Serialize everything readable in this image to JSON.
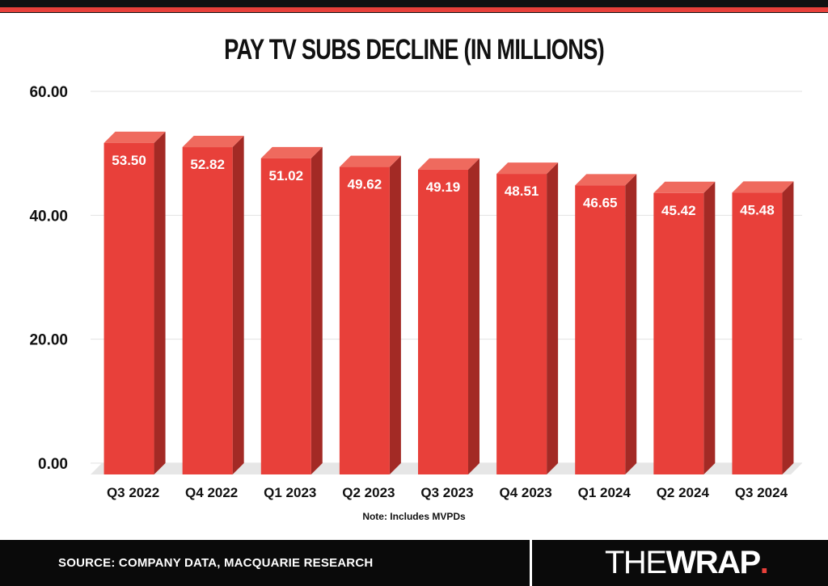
{
  "title": "PAY TV SUBS DECLINE (IN MILLIONS)",
  "note": "Note: Includes MVPDs",
  "footer": {
    "source": "SOURCE: COMPANY DATA, MACQUARIE RESEARCH",
    "logo_thin": "THE",
    "logo_bold": "WRAP",
    "logo_dot": "."
  },
  "colors": {
    "bar_front": "#e8403a",
    "bar_side": "#a32a25",
    "bar_top": "#ef6a5e",
    "accent": "#e8403a",
    "background": "#ffffff",
    "footer": "#0a0a0a"
  },
  "chart_data": {
    "type": "bar",
    "categories": [
      "Q3 2022",
      "Q4 2022",
      "Q1 2023",
      "Q2 2023",
      "Q3 2023",
      "Q4 2023",
      "Q1 2024",
      "Q2 2024",
      "Q3 2024"
    ],
    "values": [
      53.5,
      52.82,
      51.02,
      49.62,
      49.19,
      48.51,
      46.65,
      45.42,
      45.48
    ],
    "value_labels": [
      "53.50",
      "52.82",
      "51.02",
      "49.62",
      "49.19",
      "48.51",
      "46.65",
      "45.42",
      "45.48"
    ],
    "ylim": [
      0,
      60
    ],
    "yticks": [
      0,
      20,
      40,
      60
    ],
    "ytick_labels": [
      "0.00",
      "20.00",
      "40.00",
      "60.00"
    ],
    "grid": true,
    "style": "3d-bar"
  }
}
